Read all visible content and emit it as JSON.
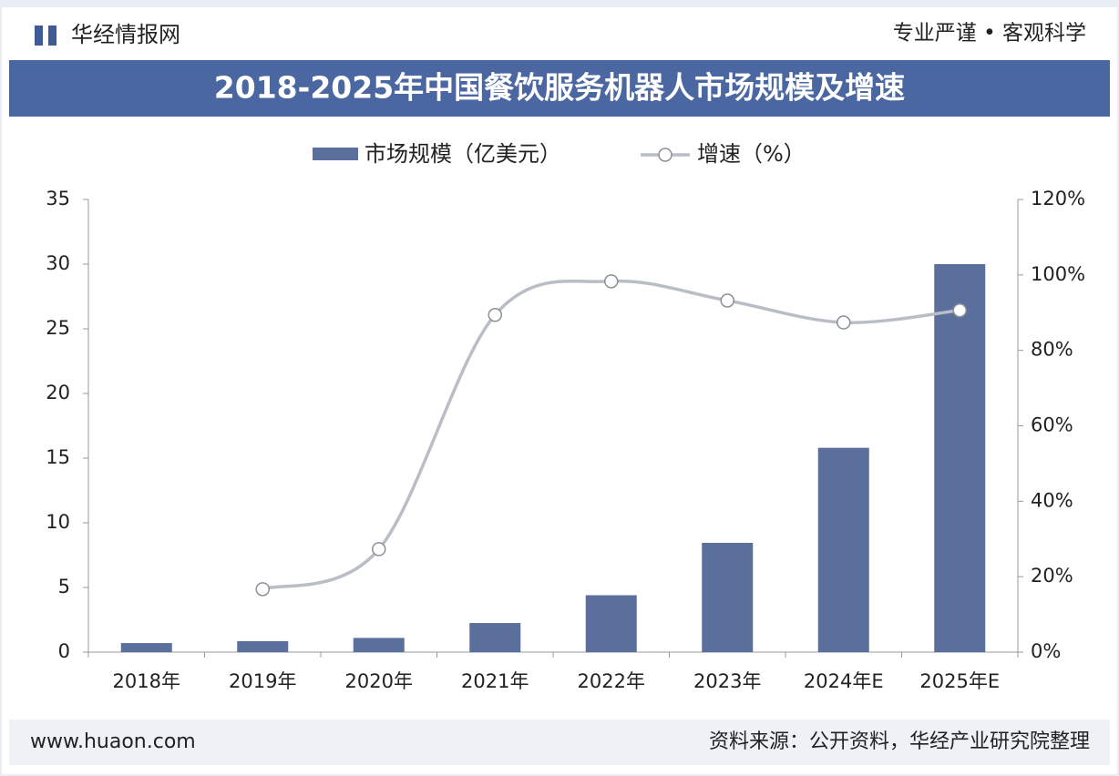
{
  "header": {
    "brand": "华经情报网",
    "slogan": "专业严谨 • 客观科学"
  },
  "chart_data": {
    "type": "bar-line",
    "title": "2018-2025年中国餐饮服务机器人市场规模及增速",
    "categories": [
      "2018年",
      "2019年",
      "2020年",
      "2021年",
      "2022年",
      "2023年",
      "2024年E",
      "2025年E"
    ],
    "series": [
      {
        "name": "市场规模（亿美元）",
        "type": "bar",
        "color": "#5b6f9d",
        "values": [
          0.7,
          0.85,
          1.1,
          2.25,
          4.4,
          8.45,
          15.8,
          30
        ]
      },
      {
        "name": "增速（%）",
        "type": "line",
        "color": "#b9bdc5",
        "axis": "y2",
        "values": [
          null,
          16.7,
          27.3,
          89.4,
          98.3,
          93.2,
          87.4,
          90.6
        ]
      }
    ],
    "ylim": [
      0,
      35
    ],
    "yticks": [
      0,
      5,
      10,
      15,
      20,
      25,
      30,
      35
    ],
    "y2lim": [
      0,
      120
    ],
    "y2ticks": [
      {
        "value": 0,
        "label": "0%"
      },
      {
        "value": 20,
        "label": "20%"
      },
      {
        "value": 40,
        "label": "40%"
      },
      {
        "value": 60,
        "label": "60%"
      },
      {
        "value": 80,
        "label": "80%"
      },
      {
        "value": 100,
        "label": "100%"
      },
      {
        "value": 120,
        "label": "120%"
      }
    ]
  },
  "footer": {
    "website": "www.huaon.com",
    "source": "资料来源：公开资料，华经产业研究院整理"
  }
}
